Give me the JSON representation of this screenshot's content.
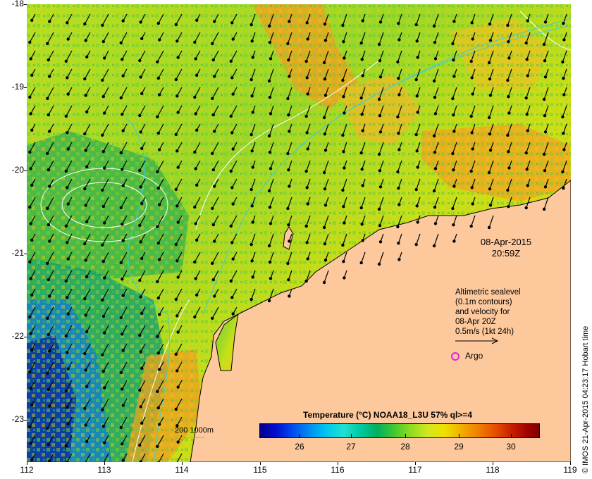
{
  "map": {
    "date_line1": "08-Apr-2015",
    "date_line2": "20:59Z",
    "velocity_legend": {
      "line1": "Altimetric sealevel",
      "line2": "(0.1m contours)",
      "line3": "and velocity for",
      "line4": "08-Apr 20Z",
      "line5": "0.5m/s (1kt 24h)"
    },
    "argo_label": "Argo",
    "depth_legend": "200  1000m",
    "colorbar_title": "Temperature (°C) NOAA18_L3U 57% ql>=4",
    "colorbar_ticks": [
      "26",
      "27",
      "28",
      "29",
      "30"
    ],
    "credit": "© IMOS 21-Apr-2015 04:23:17 Hobart time",
    "y_ticks": [
      "-18",
      "-19",
      "-20",
      "-21",
      "-22",
      "-23"
    ],
    "x_ticks": [
      "112",
      "113",
      "114",
      "115",
      "116",
      "117",
      "118",
      "119"
    ],
    "colors": {
      "land": "#fcc89c",
      "depth_contour": "#3fd0d0",
      "sealevel_contour": "#ffffff",
      "argo_marker": "#e020e0"
    }
  }
}
